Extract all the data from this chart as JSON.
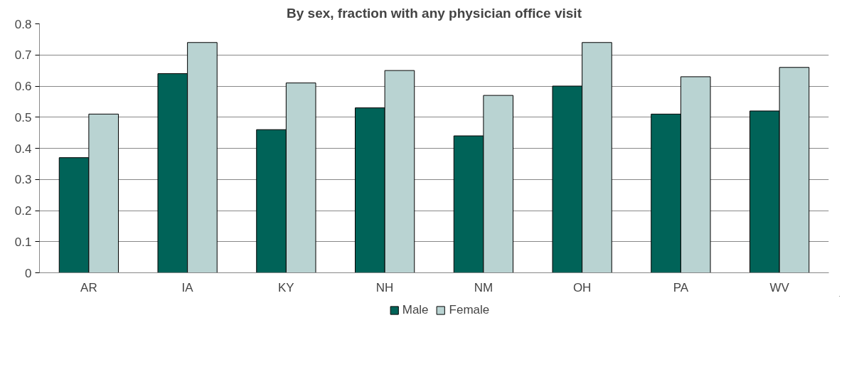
{
  "chart_data": {
    "type": "bar",
    "title": "By sex, fraction with any physician office visit",
    "categories": [
      "AR",
      "IA",
      "KY",
      "NH",
      "NM",
      "OH",
      "PA",
      "WV"
    ],
    "series": [
      {
        "name": "Male",
        "color": "#006358",
        "values": [
          0.37,
          0.64,
          0.46,
          0.53,
          0.44,
          0.6,
          0.51,
          0.52
        ]
      },
      {
        "name": "Female",
        "color": "#b9d3d2",
        "values": [
          0.51,
          0.74,
          0.61,
          0.65,
          0.57,
          0.74,
          0.63,
          0.66
        ]
      }
    ],
    "ylim": [
      0,
      0.8
    ],
    "yticks": [
      0,
      0.1,
      0.2,
      0.3,
      0.4,
      0.5,
      0.6,
      0.7,
      0.8
    ],
    "grid": "y",
    "legend": "bottom"
  }
}
